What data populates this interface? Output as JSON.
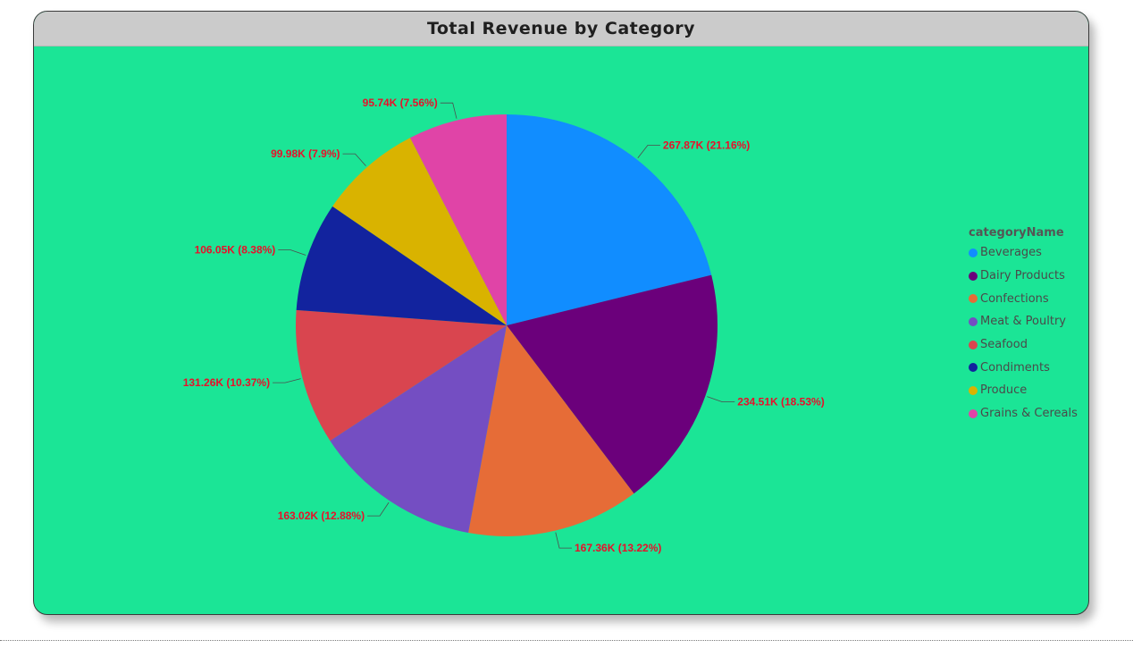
{
  "chart_data": {
    "type": "pie",
    "title": "Total Revenue by Category",
    "legend_title": "categoryName",
    "legend_position": "right",
    "label_color": "#e8102a",
    "background_color": "#1be596",
    "slices": [
      {
        "name": "Beverages",
        "value": 267.87,
        "label": "267.87K (21.16%)",
        "color": "#118dff"
      },
      {
        "name": "Dairy Products",
        "value": 234.51,
        "label": "234.51K (18.53%)",
        "color": "#6b007b"
      },
      {
        "name": "Confections",
        "value": 167.36,
        "label": "167.36K (13.22%)",
        "color": "#e66c37"
      },
      {
        "name": "Meat & Poultry",
        "value": 163.02,
        "label": "163.02K (12.88%)",
        "color": "#744ec2"
      },
      {
        "name": "Seafood",
        "value": 131.26,
        "label": "131.26K (10.37%)",
        "color": "#d9454f"
      },
      {
        "name": "Condiments",
        "value": 106.05,
        "label": "106.05K (8.38%)",
        "color": "#12239e"
      },
      {
        "name": "Produce",
        "value": 99.98,
        "label": "99.98K (7.9%)",
        "color": "#d9b300"
      },
      {
        "name": "Grains & Cereals",
        "value": 95.74,
        "label": "95.74K (7.56%)",
        "color": "#e044a7"
      }
    ]
  }
}
